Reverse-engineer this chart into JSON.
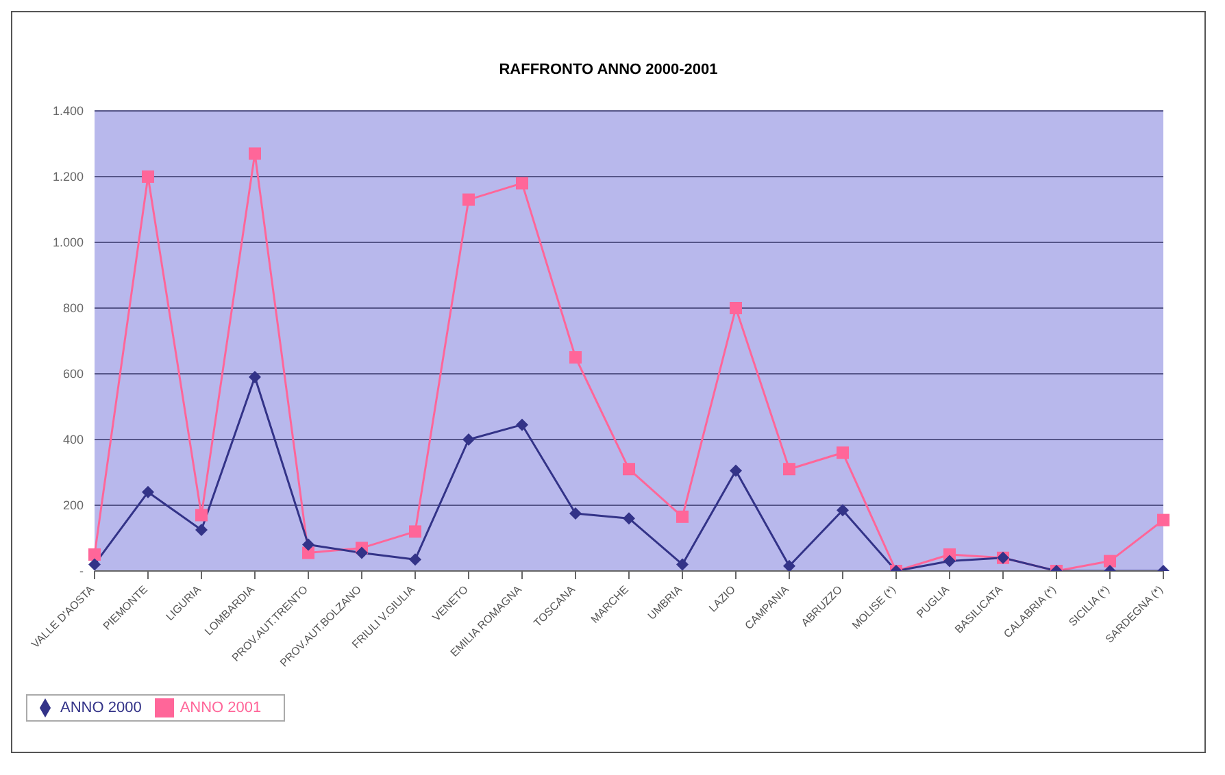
{
  "chart_data": {
    "type": "line",
    "title": "RAFFRONTO ANNO 2000-2001",
    "categories": [
      "VALLE D'AOSTA",
      "PIEMONTE",
      "LIGURIA",
      "LOMBARDIA",
      "PROV.AUT.TRENTO",
      "PROV.AUT.BOLZANO",
      "FRIULI V.GIULIA",
      "VENETO",
      "EMILIA ROMAGNA",
      "TOSCANA",
      "MARCHE",
      "UMBRIA",
      "LAZIO",
      "CAMPANIA",
      "ABRUZZO",
      "MOLISE (*)",
      "PUGLIA",
      "BASILICATA",
      "CALABRIA (*)",
      "SICILIA (*)",
      "SARDEGNA (*)"
    ],
    "series": [
      {
        "name": "ANNO 2000",
        "color": "#333388",
        "marker": "diamond",
        "values": [
          20,
          240,
          125,
          590,
          80,
          55,
          35,
          400,
          445,
          175,
          160,
          20,
          305,
          15,
          185,
          0,
          30,
          40,
          0,
          0,
          0
        ]
      },
      {
        "name": "ANNO 2001",
        "color": "#ff6699",
        "marker": "square",
        "values": [
          50,
          1200,
          170,
          1270,
          55,
          70,
          120,
          1130,
          1180,
          650,
          310,
          165,
          800,
          310,
          360,
          0,
          50,
          40,
          0,
          30,
          155
        ]
      }
    ],
    "ylim": [
      0,
      1400
    ],
    "yticks": [
      {
        "value": 0,
        "label": "-"
      },
      200,
      400,
      600,
      800,
      {
        "value": 1000,
        "label": "1.000"
      },
      {
        "value": 1200,
        "label": "1.200"
      },
      {
        "value": 1400,
        "label": "1.400"
      }
    ],
    "grid": "y",
    "legend": "bottom left"
  }
}
